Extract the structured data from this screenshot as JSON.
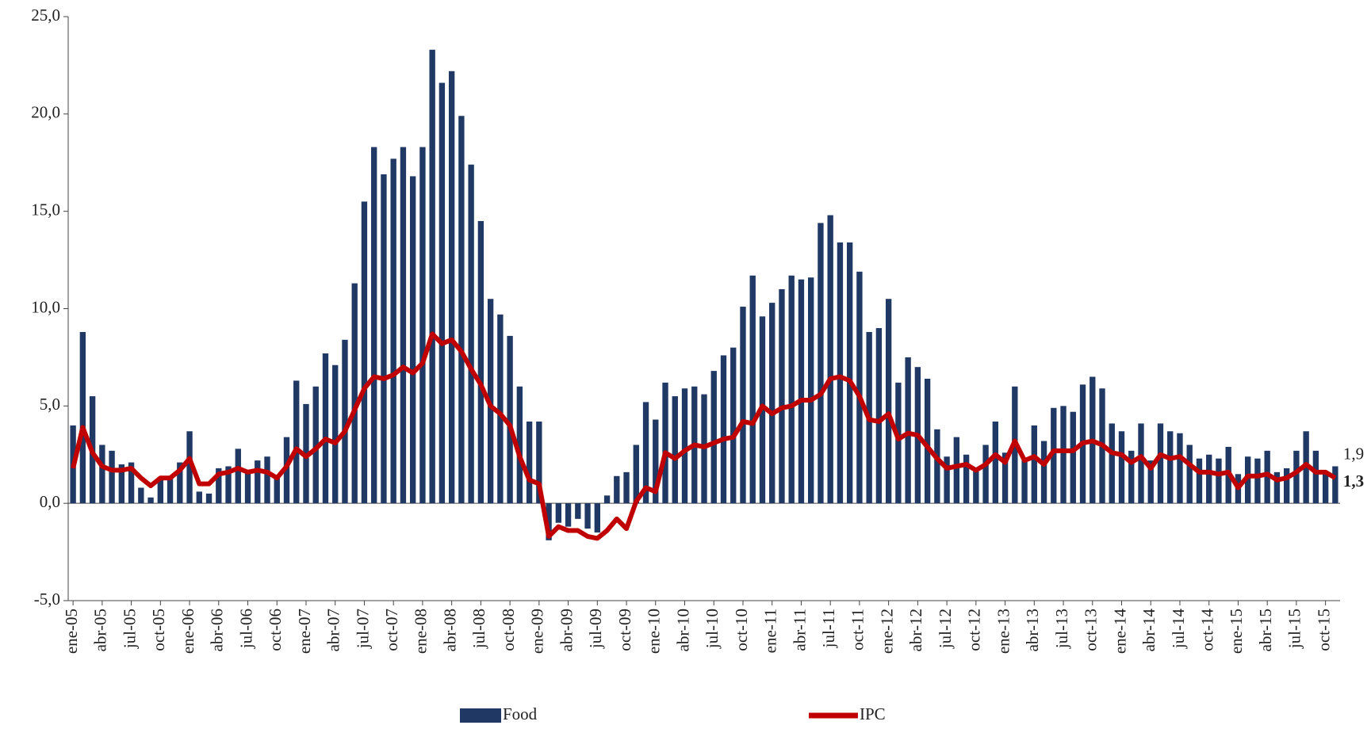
{
  "chart_data": {
    "type": "bar_line",
    "categories": [
      "ene-05",
      null,
      null,
      "abr-05",
      null,
      null,
      "jul-05",
      null,
      null,
      "oct-05",
      null,
      null,
      "ene-06",
      null,
      null,
      "abr-06",
      null,
      null,
      "jul-06",
      null,
      null,
      "oct-06",
      null,
      null,
      "ene-07",
      null,
      null,
      "abr-07",
      null,
      null,
      "jul-07",
      null,
      null,
      "oct-07",
      null,
      null,
      "ene-08",
      null,
      null,
      "abr-08",
      null,
      null,
      "jul-08",
      null,
      null,
      "oct-08",
      null,
      null,
      "ene-09",
      null,
      null,
      "abr-09",
      null,
      null,
      "jul-09",
      null,
      null,
      "oct-09",
      null,
      null,
      "ene-10",
      null,
      null,
      "abr-10",
      null,
      null,
      "jul-10",
      null,
      null,
      "oct-10",
      null,
      null,
      "ene-11",
      null,
      null,
      "abr-11",
      null,
      null,
      "jul-11",
      null,
      null,
      "oct-11",
      null,
      null,
      "ene-12",
      null,
      null,
      "abr-12",
      null,
      null,
      "jul-12",
      null,
      null,
      "oct-12",
      null,
      null,
      "ene-13",
      null,
      null,
      "abr-13",
      null,
      null,
      "jul-13",
      null,
      null,
      "oct-13",
      null,
      null,
      "ene-14",
      null,
      null,
      "abr-14",
      null,
      null,
      "jul-14",
      null,
      null,
      "oct-14",
      null,
      null,
      "ene-15",
      null,
      null,
      "abr-15",
      null,
      null,
      "jul-15",
      null,
      null,
      "oct-15",
      null
    ],
    "series": [
      {
        "name": "Food",
        "type": "bar",
        "color": "#1f3864",
        "values": [
          4.0,
          8.8,
          5.5,
          3.0,
          2.7,
          2.0,
          2.1,
          0.8,
          0.3,
          1.3,
          1.3,
          2.1,
          3.7,
          0.6,
          0.5,
          1.8,
          1.9,
          2.8,
          1.6,
          2.2,
          2.4,
          1.3,
          3.4,
          6.3,
          5.1,
          6.0,
          7.7,
          7.1,
          8.4,
          11.3,
          15.5,
          18.3,
          16.9,
          17.7,
          18.3,
          16.8,
          18.3,
          23.3,
          21.6,
          22.2,
          19.9,
          17.4,
          14.5,
          10.5,
          9.7,
          8.6,
          6.0,
          4.2,
          4.2,
          -1.9,
          -1.0,
          -1.2,
          -0.8,
          -1.3,
          -1.5,
          0.4,
          1.4,
          1.6,
          3.0,
          5.2,
          4.3,
          6.2,
          5.5,
          5.9,
          6.0,
          5.6,
          6.8,
          7.6,
          8.0,
          10.1,
          11.7,
          9.6,
          10.3,
          11.0,
          11.7,
          11.5,
          11.6,
          14.4,
          14.8,
          13.4,
          13.4,
          11.9,
          8.8,
          9.0,
          10.5,
          6.2,
          7.5,
          7.0,
          6.4,
          3.8,
          2.4,
          3.4,
          2.5,
          1.8,
          3.0,
          4.2,
          2.6,
          6.0,
          2.2,
          4.0,
          3.2,
          4.9,
          5.0,
          4.7,
          6.1,
          6.5,
          5.9,
          4.1,
          3.7,
          2.7,
          4.1,
          2.2,
          4.1,
          3.7,
          3.6,
          3.0,
          2.3,
          2.5,
          2.3,
          2.9,
          1.5,
          2.4,
          2.3,
          2.7,
          1.6,
          1.8,
          2.7,
          3.7,
          2.7,
          1.6,
          1.9
        ],
        "value_labels": {
          "130": "1,9"
        }
      },
      {
        "name": "IPC",
        "type": "line",
        "color": "#c00000",
        "values": [
          1.8,
          3.9,
          2.6,
          1.9,
          1.7,
          1.7,
          1.8,
          1.3,
          0.9,
          1.3,
          1.3,
          1.7,
          2.3,
          1.0,
          1.0,
          1.5,
          1.6,
          1.8,
          1.6,
          1.7,
          1.6,
          1.3,
          1.9,
          2.8,
          2.4,
          2.8,
          3.3,
          3.1,
          3.7,
          4.8,
          5.9,
          6.5,
          6.4,
          6.6,
          7.0,
          6.7,
          7.2,
          8.7,
          8.2,
          8.4,
          7.8,
          6.9,
          6.1,
          5.0,
          4.6,
          4.0,
          2.4,
          1.2,
          1.0,
          -1.7,
          -1.2,
          -1.4,
          -1.4,
          -1.7,
          -1.8,
          -1.4,
          -0.8,
          -1.3,
          0.1,
          0.8,
          0.6,
          2.6,
          2.3,
          2.7,
          3.0,
          2.9,
          3.1,
          3.3,
          3.4,
          4.2,
          4.1,
          5.0,
          4.6,
          4.9,
          5.0,
          5.3,
          5.3,
          5.6,
          6.4,
          6.5,
          6.3,
          5.5,
          4.3,
          4.2,
          4.6,
          3.3,
          3.6,
          3.5,
          2.9,
          2.3,
          1.8,
          1.9,
          2.0,
          1.7,
          2.0,
          2.5,
          2.1,
          3.2,
          2.2,
          2.4,
          2.0,
          2.7,
          2.7,
          2.7,
          3.1,
          3.2,
          3.0,
          2.6,
          2.5,
          2.1,
          2.4,
          1.8,
          2.5,
          2.3,
          2.4,
          2.0,
          1.6,
          1.6,
          1.5,
          1.6,
          0.8,
          1.4,
          1.4,
          1.5,
          1.2,
          1.3,
          1.6,
          2.0,
          1.6,
          1.6,
          1.3
        ],
        "value_labels": {
          "130": "1,3"
        }
      }
    ],
    "ylim": [
      -5,
      25
    ],
    "yticks": [
      {
        "value": -5,
        "label": "-5,0"
      },
      {
        "value": 0,
        "label": "0,0"
      },
      {
        "value": 5,
        "label": "5,0"
      },
      {
        "value": 10,
        "label": "10,0"
      },
      {
        "value": 15,
        "label": "15,0"
      },
      {
        "value": 20,
        "label": "20,0"
      },
      {
        "value": 25,
        "label": "25,0"
      }
    ],
    "legend": "bottom"
  }
}
